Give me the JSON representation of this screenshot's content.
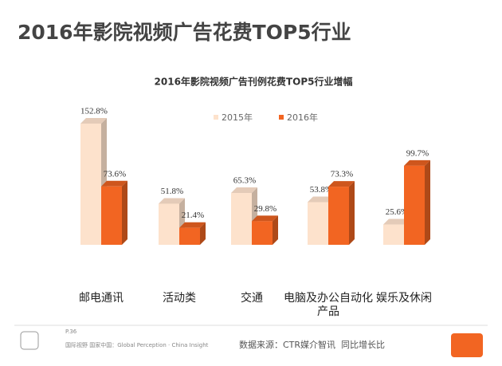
{
  "chart_data": {
    "type": "bar3d",
    "title": "2016年影院视频广告花费TOP5行业",
    "subtitle": "2016年影院视频广告刊例花费TOP5行业增幅",
    "categories": [
      "邮电通讯",
      "活动类",
      "交通",
      "电脑及办公自动化产品",
      "娱乐及休闲"
    ],
    "series": [
      {
        "name": "2015年",
        "color": "#fde2cc",
        "values": [
          152.8,
          51.8,
          65.3,
          53.8,
          25.6
        ],
        "value_labels": [
          "152.8%",
          "51.8%",
          "65.3%",
          "53.8%",
          "25.6%"
        ]
      },
      {
        "name": "2016年",
        "color": "#f26522",
        "values": [
          73.6,
          21.4,
          29.8,
          73.3,
          99.7
        ],
        "value_labels": [
          "73.6%",
          "21.4%",
          "29.8%",
          "73.3%",
          "99.7%"
        ]
      }
    ],
    "footer": {
      "page": "P.36",
      "slogan": "国际视野 国家中国：Global Perception · China Insight",
      "source": "数据来源：CTR媒介智讯",
      "note": "同比增长比"
    }
  }
}
